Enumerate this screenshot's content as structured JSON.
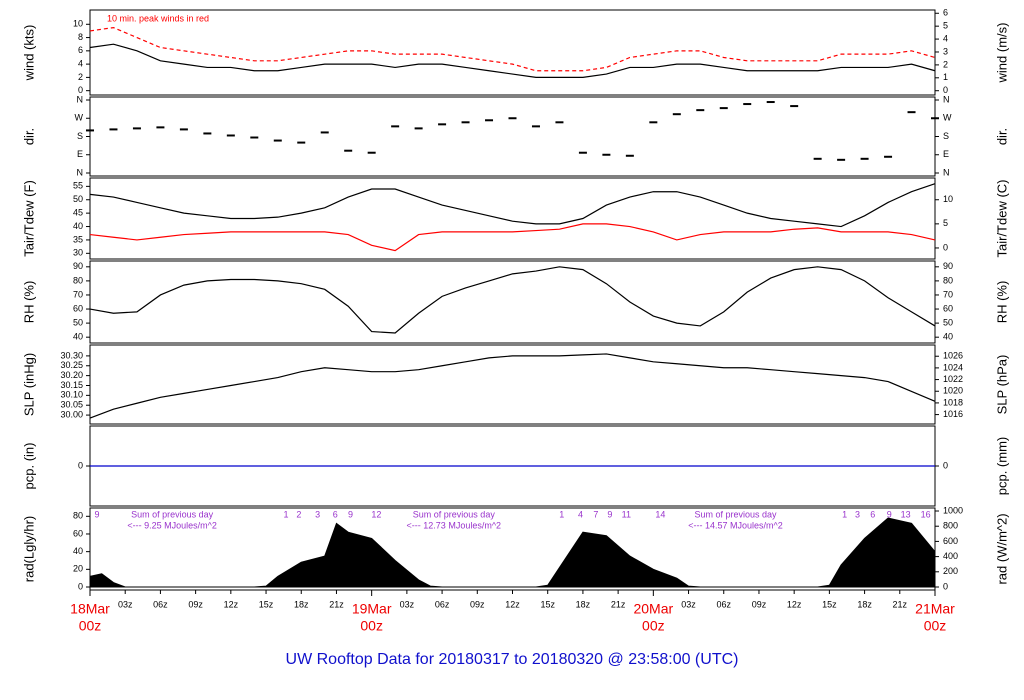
{
  "title": "UW Rooftop Data for 20180317  to  20180320 @ 23:58:00  (UTC)",
  "x_axis": {
    "xlim": [
      0,
      72
    ],
    "xticks": [
      {
        "value": 3,
        "label": "03z"
      },
      {
        "value": 6,
        "label": "06z"
      },
      {
        "value": 9,
        "label": "09z"
      },
      {
        "value": 12,
        "label": "12z"
      },
      {
        "value": 15,
        "label": "15z"
      },
      {
        "value": 18,
        "label": "18z"
      },
      {
        "value": 21,
        "label": "21z"
      },
      {
        "value": 27,
        "label": "03z"
      },
      {
        "value": 30,
        "label": "06z"
      },
      {
        "value": 33,
        "label": "09z"
      },
      {
        "value": 36,
        "label": "12z"
      },
      {
        "value": 39,
        "label": "15z"
      },
      {
        "value": 42,
        "label": "18z"
      },
      {
        "value": 45,
        "label": "21z"
      },
      {
        "value": 51,
        "label": "03z"
      },
      {
        "value": 54,
        "label": "06z"
      },
      {
        "value": 57,
        "label": "09z"
      },
      {
        "value": 60,
        "label": "12z"
      },
      {
        "value": 63,
        "label": "15z"
      },
      {
        "value": 66,
        "label": "18z"
      },
      {
        "value": 69,
        "label": "21z"
      }
    ],
    "date_ticks": [
      {
        "value": 0,
        "label": "18Mar",
        "hour": "00z"
      },
      {
        "value": 24,
        "label": "19Mar",
        "hour": "00z"
      },
      {
        "value": 48,
        "label": "20Mar",
        "hour": "00z"
      },
      {
        "value": 72,
        "label": "21Mar",
        "hour": "00z"
      }
    ]
  },
  "chart_data": [
    {
      "type": "line",
      "ylabel": "wind (kts)",
      "y2label": "wind (m/s)",
      "annotation": "10 min. peak winds in red",
      "ylim": [
        -0.2,
        11.7
      ],
      "yticks": [
        0,
        2,
        4,
        6,
        8,
        10
      ],
      "y2lim": [
        -0.1,
        6.02
      ],
      "y2ticks": [
        0,
        1,
        2,
        3,
        4,
        5,
        6
      ],
      "x": [
        0,
        2,
        4,
        6,
        8,
        10,
        12,
        14,
        16,
        18,
        20,
        22,
        24,
        26,
        28,
        30,
        32,
        34,
        36,
        38,
        40,
        42,
        44,
        46,
        48,
        50,
        52,
        54,
        56,
        58,
        60,
        62,
        64,
        66,
        68,
        70,
        72
      ],
      "series": [
        {
          "color": "#000000",
          "values": [
            6.5,
            7,
            6,
            4.5,
            4,
            3.5,
            3.5,
            3,
            3,
            3.5,
            4,
            4,
            4,
            3.5,
            4,
            4,
            3.5,
            3,
            2.5,
            2,
            2,
            2,
            2.5,
            3.5,
            3.5,
            4,
            4,
            3.5,
            3,
            3,
            3,
            3,
            3.5,
            3.5,
            3.5,
            4,
            3
          ]
        },
        {
          "color": "#ff0000",
          "dashed": true,
          "values": [
            9,
            9.5,
            8,
            6.5,
            6,
            5.5,
            5,
            4.5,
            4.5,
            5,
            5.5,
            6,
            6,
            5.5,
            5.5,
            5.5,
            5,
            4.5,
            4,
            3,
            3,
            3,
            3.5,
            5,
            5.5,
            6,
            6,
            5,
            4.5,
            4.5,
            4.5,
            4.5,
            5.5,
            5.5,
            5.5,
            6,
            5
          ]
        }
      ]
    },
    {
      "type": "scatter",
      "ylabel": "dir.",
      "y2label": "dir.",
      "ylim": [
        0,
        360
      ],
      "yticks": [
        {
          "value": 0,
          "label": "N"
        },
        {
          "value": 90,
          "label": "E"
        },
        {
          "value": 180,
          "label": "S"
        },
        {
          "value": 270,
          "label": "W"
        },
        {
          "value": 360,
          "label": "N"
        }
      ],
      "y2lim": [
        0,
        360
      ],
      "y2ticks": [
        {
          "value": 0,
          "label": "N"
        },
        {
          "value": 90,
          "label": "E"
        },
        {
          "value": 180,
          "label": "S"
        },
        {
          "value": 270,
          "label": "W"
        },
        {
          "value": 360,
          "label": "N"
        }
      ],
      "x": [
        0,
        2,
        4,
        6,
        8,
        10,
        12,
        14,
        16,
        18,
        20,
        22,
        24,
        26,
        28,
        30,
        32,
        34,
        36,
        38,
        40,
        42,
        44,
        46,
        48,
        50,
        52,
        54,
        56,
        58,
        60,
        62,
        64,
        66,
        68,
        70,
        72
      ],
      "series": [
        {
          "color": "#000000",
          "values": [
            210,
            215,
            220,
            225,
            215,
            195,
            185,
            175,
            160,
            150,
            200,
            110,
            100,
            230,
            220,
            240,
            250,
            260,
            270,
            230,
            250,
            100,
            90,
            85,
            250,
            290,
            310,
            320,
            340,
            350,
            330,
            70,
            65,
            70,
            80,
            300,
            270
          ]
        }
      ]
    },
    {
      "type": "line",
      "ylabel": "Tair/Tdew (F)",
      "y2label": "Tair/Tdew (C)",
      "ylim": [
        29,
        57
      ],
      "yticks": [
        30,
        35,
        40,
        45,
        50,
        55
      ],
      "y2lim": [
        -1.667,
        13.889
      ],
      "y2ticks": [
        0,
        5,
        10
      ],
      "x": [
        0,
        2,
        4,
        6,
        8,
        10,
        12,
        14,
        16,
        18,
        20,
        22,
        24,
        26,
        28,
        30,
        32,
        34,
        36,
        38,
        40,
        42,
        44,
        46,
        48,
        50,
        52,
        54,
        56,
        58,
        60,
        62,
        64,
        66,
        68,
        70,
        72
      ],
      "series": [
        {
          "color": "#000000",
          "values": [
            52,
            51,
            49,
            47,
            45,
            44,
            43,
            43,
            43.5,
            45,
            47,
            51,
            54,
            54,
            51,
            48,
            46,
            44,
            42,
            41,
            41,
            43,
            48,
            51,
            53,
            53,
            51,
            48,
            45,
            43,
            42,
            41,
            40,
            44,
            49,
            53,
            56
          ]
        },
        {
          "color": "#ff0000",
          "values": [
            37,
            36,
            35,
            36,
            37,
            37.5,
            38,
            38,
            38,
            38,
            38,
            37,
            33,
            31,
            37,
            38,
            38,
            38,
            38,
            38.5,
            39,
            41,
            41,
            40,
            38,
            35,
            37,
            38,
            38,
            38,
            39,
            39.5,
            38,
            38,
            38,
            37,
            35
          ]
        }
      ]
    },
    {
      "type": "line",
      "ylabel": "RH (%)",
      "y2label": "RH (%)",
      "ylim": [
        38,
        92
      ],
      "yticks": [
        40,
        50,
        60,
        70,
        80,
        90
      ],
      "y2lim": [
        38,
        92
      ],
      "y2ticks": [
        40,
        50,
        60,
        70,
        80,
        90
      ],
      "x": [
        0,
        2,
        4,
        6,
        8,
        10,
        12,
        14,
        16,
        18,
        20,
        22,
        24,
        26,
        28,
        30,
        32,
        34,
        36,
        38,
        40,
        42,
        44,
        46,
        48,
        50,
        52,
        54,
        56,
        58,
        60,
        62,
        64,
        66,
        68,
        70,
        72
      ],
      "series": [
        {
          "color": "#000000",
          "values": [
            60,
            57,
            58,
            70,
            77,
            80,
            81,
            81,
            80,
            78,
            74,
            62,
            44,
            43,
            57,
            69,
            75,
            80,
            85,
            87,
            90,
            88,
            78,
            65,
            55,
            50,
            48,
            58,
            72,
            82,
            88,
            90,
            88,
            80,
            68,
            58,
            48
          ]
        }
      ]
    },
    {
      "type": "line",
      "ylabel": "SLP (inHg)",
      "y2label": "SLP (hPa)",
      "ylim": [
        29.97,
        30.34
      ],
      "yticks": [
        {
          "value": 30,
          "label": "30.00"
        },
        30.05,
        {
          "value": 30.1,
          "label": "30.10"
        },
        30.15,
        {
          "value": 30.2,
          "label": "30.20"
        },
        30.25,
        {
          "value": 30.3,
          "label": "30.30"
        }
      ],
      "y2lim": [
        1014.9,
        1027.41
      ],
      "y2ticks": [
        1016,
        1018,
        1020,
        1022,
        1024,
        1026
      ],
      "x": [
        0,
        2,
        4,
        6,
        8,
        10,
        12,
        14,
        16,
        18,
        20,
        22,
        24,
        26,
        28,
        30,
        32,
        34,
        36,
        38,
        40,
        42,
        44,
        46,
        48,
        50,
        52,
        54,
        56,
        58,
        60,
        62,
        64,
        66,
        68,
        70,
        72
      ],
      "series": [
        {
          "color": "#000000",
          "values": [
            29.985,
            30.03,
            30.06,
            30.09,
            30.11,
            30.13,
            30.15,
            30.17,
            30.19,
            30.22,
            30.24,
            30.23,
            30.22,
            30.22,
            30.23,
            30.25,
            30.27,
            30.29,
            30.3,
            30.3,
            30.3,
            30.305,
            30.31,
            30.29,
            30.27,
            30.26,
            30.25,
            30.24,
            30.24,
            30.23,
            30.22,
            30.21,
            30.2,
            30.19,
            30.17,
            30.12,
            30.07
          ]
        }
      ]
    },
    {
      "type": "line",
      "ylabel": "pcp. (in)",
      "y2label": "pcp. (mm)",
      "ylim": [
        -1,
        1
      ],
      "yticks": [
        0
      ],
      "y2lim": [
        -1,
        1
      ],
      "y2ticks": [
        0
      ],
      "x": [
        0,
        2,
        4,
        6,
        8,
        10,
        12,
        14,
        16,
        18,
        20,
        22,
        24,
        26,
        28,
        30,
        32,
        34,
        36,
        38,
        40,
        42,
        44,
        46,
        48,
        50,
        52,
        54,
        56,
        58,
        60,
        62,
        64,
        66,
        68,
        70,
        72
      ],
      "series": [
        {
          "color": "#0000cc",
          "values": [
            0,
            0,
            0,
            0,
            0,
            0,
            0,
            0,
            0,
            0,
            0,
            0,
            0,
            0,
            0,
            0,
            0,
            0,
            0,
            0,
            0,
            0,
            0,
            0,
            0,
            0,
            0,
            0,
            0,
            0,
            0,
            0,
            0,
            0,
            0,
            0,
            0
          ]
        }
      ]
    },
    {
      "type": "area",
      "ylabel": "rad(Lgly/hr)",
      "y2label": "rad (W/m^2)",
      "ylim": [
        0,
        86
      ],
      "yticks": [
        0,
        20,
        40,
        60,
        80
      ],
      "y2lim": [
        0,
        1000.2
      ],
      "y2ticks": [
        0,
        200,
        400,
        600,
        800,
        1000
      ],
      "x": [
        0,
        1,
        2,
        3,
        4,
        6,
        8,
        10,
        12,
        14,
        15,
        16,
        18,
        20,
        21,
        22,
        24,
        26,
        28,
        29,
        30,
        32,
        34,
        36,
        38,
        39,
        40,
        42,
        44,
        46,
        48,
        50,
        51,
        52,
        54,
        56,
        58,
        60,
        62,
        63,
        64,
        66,
        68,
        70,
        72
      ],
      "series": [
        {
          "color": "#000000",
          "values": [
            12,
            15,
            5,
            0,
            0,
            0,
            0,
            0,
            0,
            0,
            1,
            12,
            28,
            35,
            72,
            62,
            55,
            30,
            8,
            1,
            0,
            0,
            0,
            0,
            0,
            2,
            22,
            62,
            58,
            35,
            20,
            10,
            1,
            0,
            0,
            0,
            0,
            0,
            0,
            2,
            25,
            55,
            78,
            72,
            40
          ]
        }
      ],
      "sun_marks": [
        {
          "value": 0.6,
          "label": "9"
        },
        {
          "value": 16.7,
          "label": "1"
        },
        {
          "value": 17.8,
          "label": "2"
        },
        {
          "value": 19.4,
          "label": "3"
        },
        {
          "value": 20.9,
          "label": "6"
        },
        {
          "value": 22.2,
          "label": "9"
        },
        {
          "value": 24.4,
          "label": "12"
        },
        {
          "value": 40.2,
          "label": "1"
        },
        {
          "value": 41.8,
          "label": "4"
        },
        {
          "value": 43.1,
          "label": "7"
        },
        {
          "value": 44.3,
          "label": "9"
        },
        {
          "value": 45.7,
          "label": "11"
        },
        {
          "value": 48.6,
          "label": "14"
        },
        {
          "value": 64.3,
          "label": "1"
        },
        {
          "value": 65.4,
          "label": "3"
        },
        {
          "value": 66.7,
          "label": "6"
        },
        {
          "value": 68.1,
          "label": "9"
        },
        {
          "value": 69.5,
          "label": "13"
        },
        {
          "value": 71.2,
          "label": "16"
        }
      ],
      "daily_sums": [
        {
          "heading": "Sum of previous day",
          "text": "<--- 9.25 MJoules/m^2"
        },
        {
          "heading": "Sum of previous day",
          "text": "<--- 12.73 MJoules/m^2"
        },
        {
          "heading": "Sum of previous day",
          "text": "<--- 14.57 MJoules/m^2"
        }
      ]
    }
  ]
}
